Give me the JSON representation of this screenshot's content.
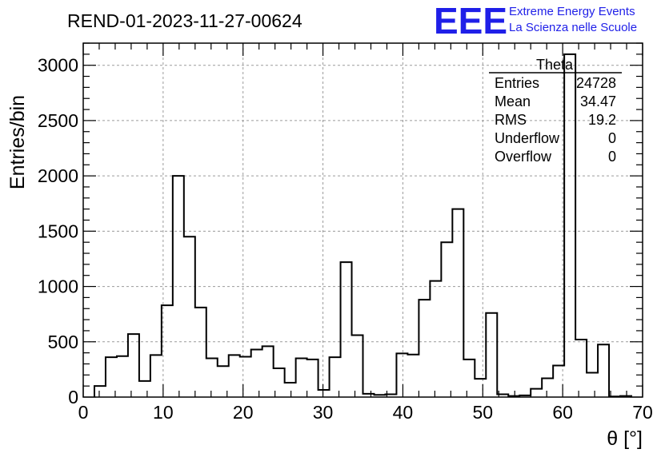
{
  "header": {
    "run_title": "REND-01-2023-11-27-00624",
    "logo_mark": "EEE",
    "logo_line1": "Extreme Energy Events",
    "logo_line2": "La Scienza nelle Scuole"
  },
  "stats_box": {
    "title": "Theta",
    "rows": [
      {
        "label": "Entries",
        "value": "24728"
      },
      {
        "label": "Mean",
        "value": "34.47"
      },
      {
        "label": "RMS",
        "value": "19.2"
      },
      {
        "label": "Underflow",
        "value": "0"
      },
      {
        "label": "Overflow",
        "value": "0"
      }
    ]
  },
  "colors": {
    "logo": "#1f1fe8",
    "line": "#000000",
    "grid": "#9a9a9a"
  },
  "chart_data": {
    "type": "histogram",
    "title": "REND-01-2023-11-27-00624",
    "xlabel": "θ [°]",
    "ylabel": "Entries/bin",
    "xlim": [
      0,
      70
    ],
    "ylim": [
      0,
      3200
    ],
    "grid": true,
    "x_ticks": [
      0,
      10,
      20,
      30,
      40,
      50,
      60,
      70
    ],
    "y_ticks": [
      0,
      500,
      1000,
      1500,
      2000,
      2500,
      3000
    ],
    "bin_edges": [
      1.4,
      2.8,
      4.2,
      5.6,
      7.0,
      8.4,
      9.8,
      11.2,
      12.6,
      14.0,
      15.4,
      16.8,
      18.2,
      19.6,
      21.0,
      22.4,
      23.8,
      25.2,
      26.6,
      28.0,
      29.4,
      30.8,
      32.2,
      33.6,
      35.0,
      36.4,
      37.8,
      39.2,
      40.6,
      42.0,
      43.4,
      44.8,
      46.2,
      47.6,
      49.0,
      50.4,
      51.8,
      53.2,
      54.6,
      56.0,
      57.4,
      58.8,
      60.2,
      61.6,
      63.0,
      64.4,
      65.8,
      67.2,
      68.6
    ],
    "values": [
      100,
      360,
      370,
      570,
      145,
      380,
      830,
      2000,
      1450,
      810,
      350,
      280,
      380,
      365,
      430,
      460,
      260,
      130,
      350,
      340,
      65,
      360,
      1220,
      560,
      30,
      20,
      25,
      395,
      385,
      880,
      1050,
      1400,
      1700,
      340,
      165,
      760,
      25,
      10,
      15,
      75,
      170,
      285,
      3100,
      520,
      220,
      475,
      5,
      10
    ]
  }
}
